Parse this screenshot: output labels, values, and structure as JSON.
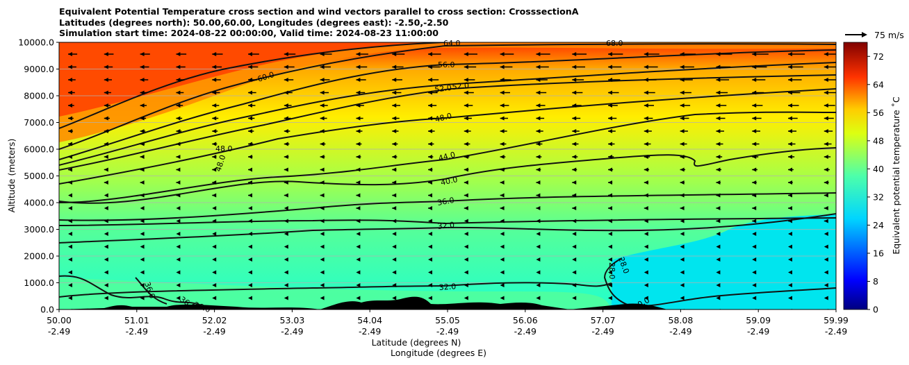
{
  "title_lines": [
    "Equivalent Potential Temperature cross section and wind vectors parallel to cross section: CrosssectionA",
    "Latitudes (degrees north): 50.00,60.00, Longitudes (degrees east): -2.50,-2.50",
    "Simulation start time: 2024-08-22 00:00:00, Valid time: 2024-08-23 11:00:00"
  ],
  "chart_data": {
    "type": "cross-section contour",
    "ylabel": "Altitude (meters)",
    "xlabel_lat": "Latitude (degrees N)",
    "xlabel_lon": "Longitude (degrees E)",
    "ylim": [
      0,
      10000
    ],
    "yticks": [
      "0.0",
      "1000.0",
      "2000.0",
      "3000.0",
      "4000.0",
      "5000.0",
      "6000.0",
      "7000.0",
      "8000.0",
      "9000.0",
      "10000.0"
    ],
    "xticks_lat": [
      "50.00",
      "51.01",
      "52.02",
      "53.03",
      "54.04",
      "55.05",
      "56.06",
      "57.07",
      "58.08",
      "59.09",
      "59.99"
    ],
    "xticks_lon": [
      "-2.49",
      "-2.49",
      "-2.49",
      "-2.49",
      "-2.49",
      "-2.49",
      "-2.49",
      "-2.49",
      "-2.49",
      "-2.49",
      "-2.49"
    ],
    "colorbar": {
      "label": "Equivalent potential temperature ˚C",
      "range": [
        0,
        76
      ],
      "ticks": [
        "0",
        "8",
        "16",
        "24",
        "32",
        "40",
        "48",
        "56",
        "64",
        "72"
      ]
    },
    "quiver_key": "75 m/s",
    "contour_labels": [
      "60.0",
      "56.0",
      "52.0",
      "52.0",
      "48.0",
      "48.0",
      "48.0",
      "44.0",
      "40.0",
      "36.0",
      "32.0",
      "32.0",
      "28.0",
      "28.0",
      "36.0",
      "36.0",
      "36.0",
      "0.0",
      "64.0",
      "68.0"
    ],
    "contour_levels": [
      32,
      36,
      40,
      44,
      48,
      52,
      56,
      60,
      64
    ],
    "wind": "easterly (leftward) vectors, strongest aloft near 9000-10000 m in the north"
  }
}
